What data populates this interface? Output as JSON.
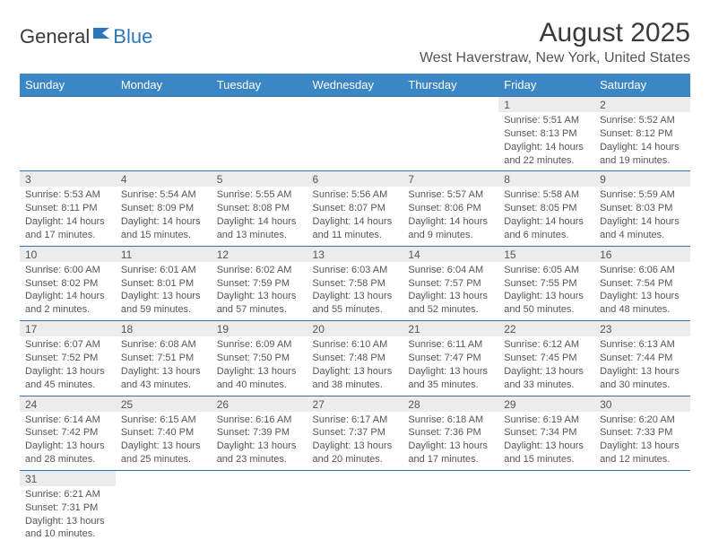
{
  "logo": {
    "textA": "General",
    "textB": "Blue",
    "icon_color": "#2d77b8"
  },
  "title": "August 2025",
  "location": "West Haverstraw, New York, United States",
  "colors": {
    "header_bg": "#3b86c4",
    "header_text": "#ffffff",
    "daynum_bg": "#ececec",
    "rule": "#3472a8",
    "text": "#555555"
  },
  "dayNames": [
    "Sunday",
    "Monday",
    "Tuesday",
    "Wednesday",
    "Thursday",
    "Friday",
    "Saturday"
  ],
  "weeks": [
    [
      null,
      null,
      null,
      null,
      null,
      {
        "d": "1",
        "sr": "5:51 AM",
        "ss": "8:13 PM",
        "dl": "14 hours and 22 minutes."
      },
      {
        "d": "2",
        "sr": "5:52 AM",
        "ss": "8:12 PM",
        "dl": "14 hours and 19 minutes."
      }
    ],
    [
      {
        "d": "3",
        "sr": "5:53 AM",
        "ss": "8:11 PM",
        "dl": "14 hours and 17 minutes."
      },
      {
        "d": "4",
        "sr": "5:54 AM",
        "ss": "8:09 PM",
        "dl": "14 hours and 15 minutes."
      },
      {
        "d": "5",
        "sr": "5:55 AM",
        "ss": "8:08 PM",
        "dl": "14 hours and 13 minutes."
      },
      {
        "d": "6",
        "sr": "5:56 AM",
        "ss": "8:07 PM",
        "dl": "14 hours and 11 minutes."
      },
      {
        "d": "7",
        "sr": "5:57 AM",
        "ss": "8:06 PM",
        "dl": "14 hours and 9 minutes."
      },
      {
        "d": "8",
        "sr": "5:58 AM",
        "ss": "8:05 PM",
        "dl": "14 hours and 6 minutes."
      },
      {
        "d": "9",
        "sr": "5:59 AM",
        "ss": "8:03 PM",
        "dl": "14 hours and 4 minutes."
      }
    ],
    [
      {
        "d": "10",
        "sr": "6:00 AM",
        "ss": "8:02 PM",
        "dl": "14 hours and 2 minutes."
      },
      {
        "d": "11",
        "sr": "6:01 AM",
        "ss": "8:01 PM",
        "dl": "13 hours and 59 minutes."
      },
      {
        "d": "12",
        "sr": "6:02 AM",
        "ss": "7:59 PM",
        "dl": "13 hours and 57 minutes."
      },
      {
        "d": "13",
        "sr": "6:03 AM",
        "ss": "7:58 PM",
        "dl": "13 hours and 55 minutes."
      },
      {
        "d": "14",
        "sr": "6:04 AM",
        "ss": "7:57 PM",
        "dl": "13 hours and 52 minutes."
      },
      {
        "d": "15",
        "sr": "6:05 AM",
        "ss": "7:55 PM",
        "dl": "13 hours and 50 minutes."
      },
      {
        "d": "16",
        "sr": "6:06 AM",
        "ss": "7:54 PM",
        "dl": "13 hours and 48 minutes."
      }
    ],
    [
      {
        "d": "17",
        "sr": "6:07 AM",
        "ss": "7:52 PM",
        "dl": "13 hours and 45 minutes."
      },
      {
        "d": "18",
        "sr": "6:08 AM",
        "ss": "7:51 PM",
        "dl": "13 hours and 43 minutes."
      },
      {
        "d": "19",
        "sr": "6:09 AM",
        "ss": "7:50 PM",
        "dl": "13 hours and 40 minutes."
      },
      {
        "d": "20",
        "sr": "6:10 AM",
        "ss": "7:48 PM",
        "dl": "13 hours and 38 minutes."
      },
      {
        "d": "21",
        "sr": "6:11 AM",
        "ss": "7:47 PM",
        "dl": "13 hours and 35 minutes."
      },
      {
        "d": "22",
        "sr": "6:12 AM",
        "ss": "7:45 PM",
        "dl": "13 hours and 33 minutes."
      },
      {
        "d": "23",
        "sr": "6:13 AM",
        "ss": "7:44 PM",
        "dl": "13 hours and 30 minutes."
      }
    ],
    [
      {
        "d": "24",
        "sr": "6:14 AM",
        "ss": "7:42 PM",
        "dl": "13 hours and 28 minutes."
      },
      {
        "d": "25",
        "sr": "6:15 AM",
        "ss": "7:40 PM",
        "dl": "13 hours and 25 minutes."
      },
      {
        "d": "26",
        "sr": "6:16 AM",
        "ss": "7:39 PM",
        "dl": "13 hours and 23 minutes."
      },
      {
        "d": "27",
        "sr": "6:17 AM",
        "ss": "7:37 PM",
        "dl": "13 hours and 20 minutes."
      },
      {
        "d": "28",
        "sr": "6:18 AM",
        "ss": "7:36 PM",
        "dl": "13 hours and 17 minutes."
      },
      {
        "d": "29",
        "sr": "6:19 AM",
        "ss": "7:34 PM",
        "dl": "13 hours and 15 minutes."
      },
      {
        "d": "30",
        "sr": "6:20 AM",
        "ss": "7:33 PM",
        "dl": "13 hours and 12 minutes."
      }
    ],
    [
      {
        "d": "31",
        "sr": "6:21 AM",
        "ss": "7:31 PM",
        "dl": "13 hours and 10 minutes."
      },
      null,
      null,
      null,
      null,
      null,
      null
    ]
  ],
  "labels": {
    "sunrise": "Sunrise: ",
    "sunset": "Sunset: ",
    "daylight": "Daylight: "
  }
}
